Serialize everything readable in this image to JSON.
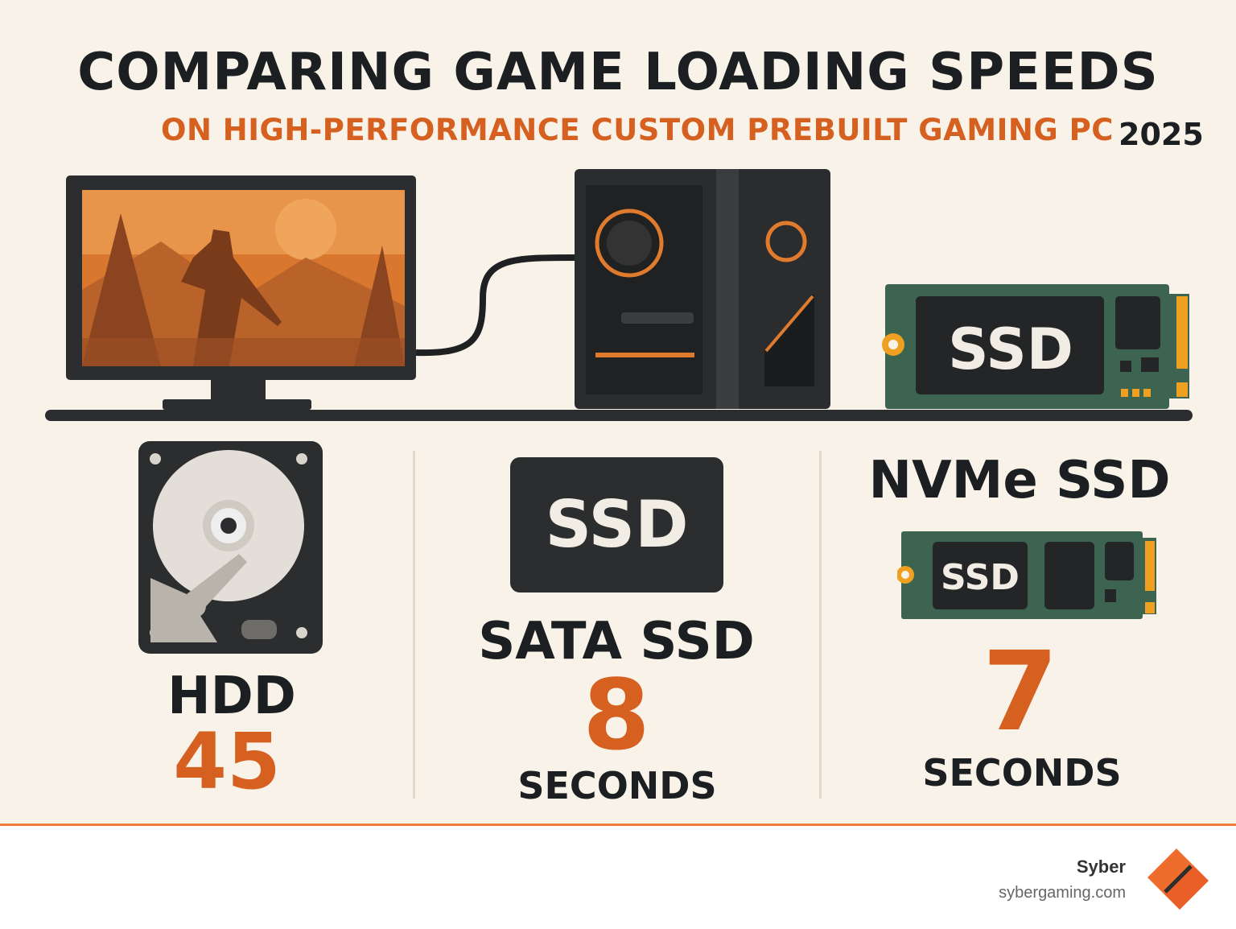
{
  "header": {
    "title": "COMPARING GAME LOADING SPEEDS",
    "subtitle": "ON HIGH-PERFORMANCE CUSTOM PREBUILT GAMING PC",
    "year": "2025"
  },
  "illustration": {
    "ssd_chip_label": "SSD"
  },
  "comparison": [
    {
      "label": "HDD",
      "value": "45",
      "unit": ""
    },
    {
      "label": "SATA SSD",
      "device_label": "SSD",
      "value": "8",
      "unit": "SECONDS"
    },
    {
      "label": "NVMe SSD",
      "device_label": "SSD",
      "value": "7",
      "unit": "SECONDS"
    }
  ],
  "footer": {
    "brand": "Syber",
    "website": "sybergaming.com"
  },
  "colors": {
    "background": "#f9f2e8",
    "accent": "#d5601f",
    "dark": "#1c1f22",
    "pcb_green": "#3d6450"
  }
}
